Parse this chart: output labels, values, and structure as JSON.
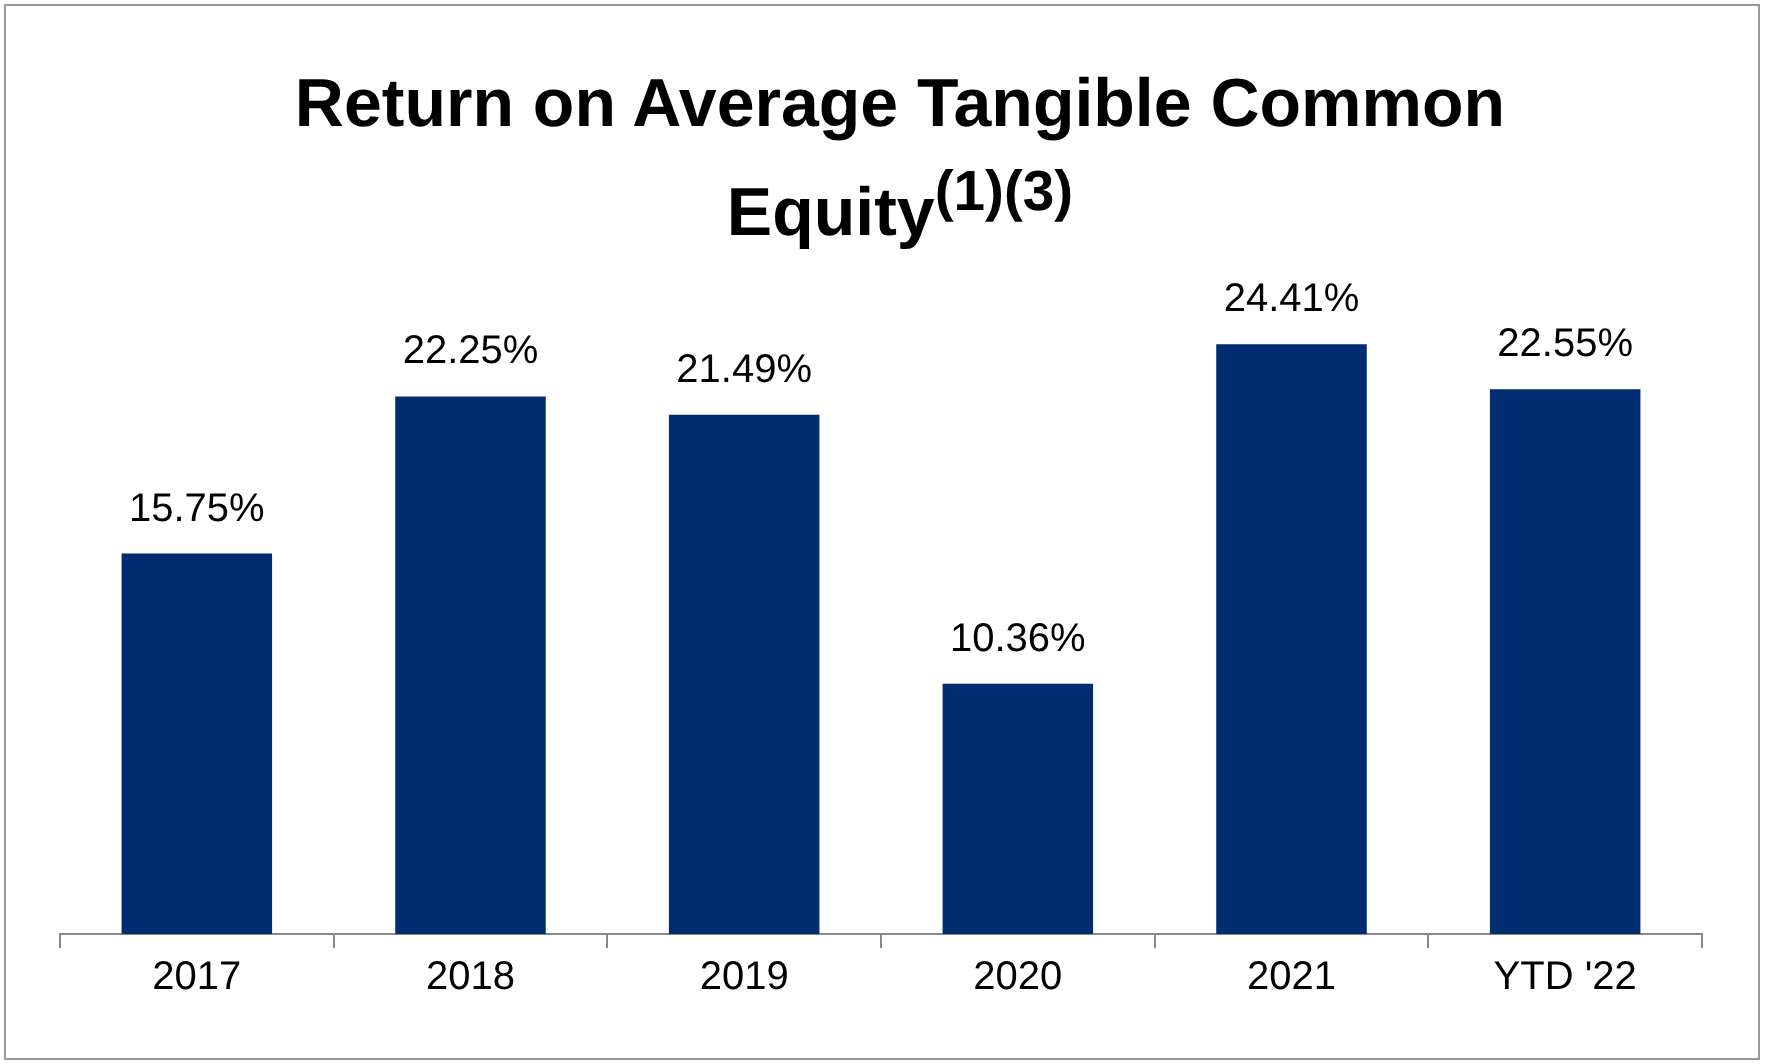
{
  "chart_data": {
    "type": "bar",
    "title": "Return on Average Tangible Common Equity$^{(1)(3)}$",
    "categories": [
      "2017",
      "2018",
      "2019",
      "2020",
      "2021",
      "YTD '22"
    ],
    "values": [
      15.75,
      22.25,
      21.49,
      10.36,
      24.41,
      22.55
    ],
    "value_labels": [
      "15.75%",
      "22.25%",
      "21.49%",
      "10.36%",
      "24.41%",
      "22.55%"
    ],
    "color": "#002d72",
    "grid": false,
    "legend": false
  }
}
